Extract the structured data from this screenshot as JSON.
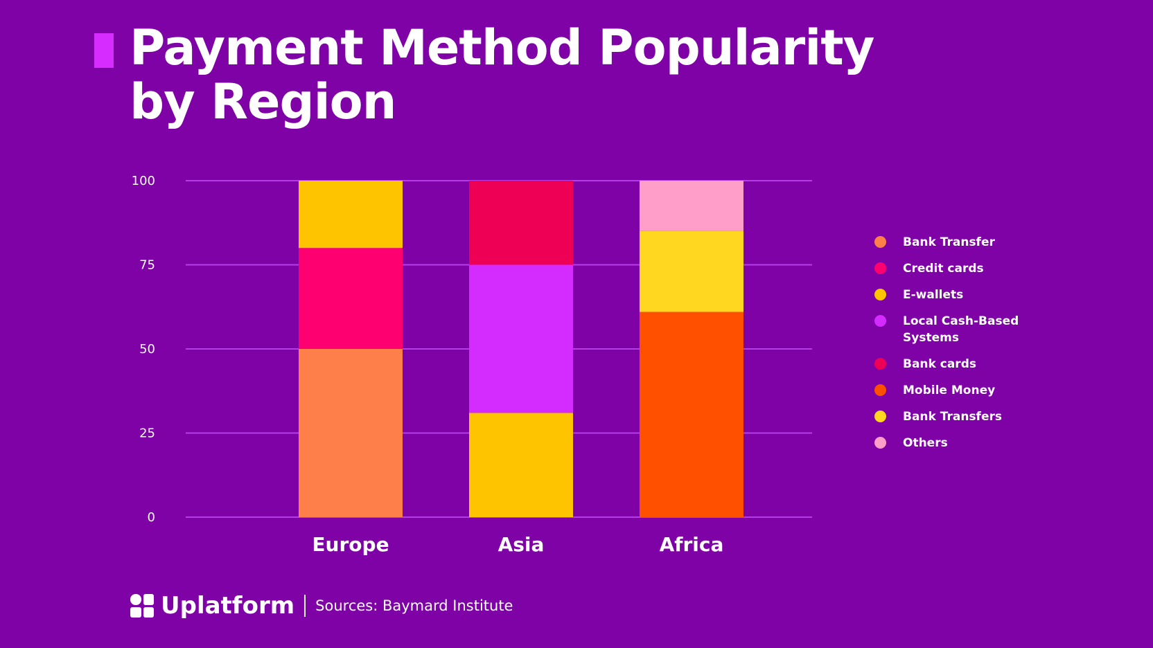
{
  "title_line1": "Payment Method Popularity",
  "title_line2": "by Region",
  "footer": {
    "brand": "Uplatform",
    "source": "Sources: Baymard Institute"
  },
  "colors": {
    "background": "#7e02a6",
    "grid": "#b53ee8",
    "accent": "#d62cff"
  },
  "chart_data": {
    "type": "bar",
    "stacked": true,
    "title": "Payment Method Popularity by Region",
    "xlabel": "",
    "ylabel": "",
    "ylim": [
      0,
      100
    ],
    "yticks": [
      0,
      25,
      50,
      75,
      100
    ],
    "grid": true,
    "legend_position": "right",
    "categories": [
      "Europe",
      "Asia",
      "Africa"
    ],
    "series": [
      {
        "name": "Bank Transfer",
        "color": "#ff7f4a",
        "values": [
          50,
          0,
          0
        ]
      },
      {
        "name": "Credit cards",
        "color": "#ff0070",
        "values": [
          30,
          0,
          0
        ]
      },
      {
        "name": "E-wallets",
        "color": "#ffc400",
        "values": [
          20,
          31,
          0
        ]
      },
      {
        "name": "Local Cash-Based Systems",
        "color": "#d42bff",
        "values": [
          0,
          44,
          0
        ]
      },
      {
        "name": "Bank cards",
        "color": "#ee0055",
        "values": [
          0,
          25,
          0
        ]
      },
      {
        "name": "Mobile Money",
        "color": "#ff5000",
        "values": [
          0,
          0,
          61
        ]
      },
      {
        "name": "Bank Transfers",
        "color": "#ffd620",
        "values": [
          0,
          0,
          24
        ]
      },
      {
        "name": "Others",
        "color": "#ff9ec8",
        "values": [
          0,
          0,
          15
        ]
      }
    ]
  }
}
